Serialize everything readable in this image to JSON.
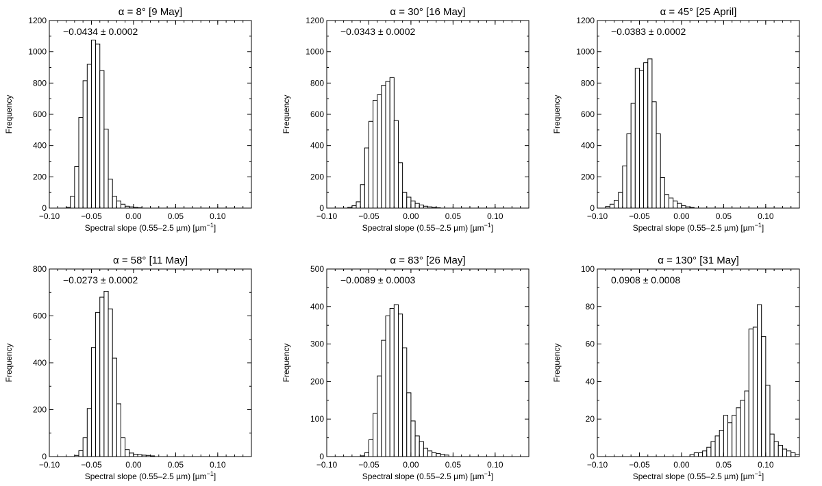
{
  "chart_data": [
    {
      "type": "bar",
      "title": "α = 8° [9 May]",
      "annotation": "−0.0434 ± 0.0002",
      "xlabel": "Spectral slope (0.55–2.5 µm) [µm",
      "xlabel_sup": "−1",
      "xlabel_end": "]",
      "ylabel": "Frequency",
      "xlim": [
        -0.1,
        0.14
      ],
      "ylim": [
        0,
        1200
      ],
      "xticks": [
        -0.1,
        -0.05,
        0.0,
        0.05,
        0.1
      ],
      "xtick_labels": [
        "−0.10",
        "−0.05",
        "0.00",
        "0.05",
        "0.10"
      ],
      "yticks": [
        0,
        200,
        400,
        600,
        800,
        1000,
        1200
      ],
      "ytick_labels": [
        "0",
        "200",
        "400",
        "600",
        "800",
        "1000",
        "1200"
      ],
      "bin_width": 0.005,
      "bin_start": -0.085,
      "values": [
        0,
        5,
        75,
        265,
        580,
        815,
        920,
        1075,
        1050,
        880,
        505,
        185,
        75,
        45,
        25,
        12,
        8,
        5,
        2,
        0
      ]
    },
    {
      "type": "bar",
      "title": "α = 30° [16 May]",
      "annotation": "−0.0343 ± 0.0002",
      "xlabel": "Spectral slope (0.55–2.5 µm) [µm",
      "xlabel_sup": "−1",
      "xlabel_end": "]",
      "ylabel": "Frequency",
      "xlim": [
        -0.1,
        0.14
      ],
      "ylim": [
        0,
        1200
      ],
      "xticks": [
        -0.1,
        -0.05,
        0.0,
        0.05,
        0.1
      ],
      "xtick_labels": [
        "−0.10",
        "−0.05",
        "0.00",
        "0.05",
        "0.10"
      ],
      "yticks": [
        0,
        200,
        400,
        600,
        800,
        1000,
        1200
      ],
      "ytick_labels": [
        "0",
        "200",
        "400",
        "600",
        "800",
        "1000",
        "1200"
      ],
      "bin_width": 0.005,
      "bin_start": -0.08,
      "values": [
        0,
        5,
        15,
        40,
        150,
        385,
        555,
        690,
        725,
        785,
        810,
        835,
        560,
        290,
        100,
        70,
        45,
        30,
        20,
        12,
        8,
        5,
        2,
        0
      ]
    },
    {
      "type": "bar",
      "title": "α = 45° [25 April]",
      "annotation": "−0.0383 ± 0.0002",
      "xlabel": "Spectral slope (0.55–2.5 µm) [µm",
      "xlabel_sup": "−1",
      "xlabel_end": "]",
      "ylabel": "Frequency",
      "xlim": [
        -0.1,
        0.14
      ],
      "ylim": [
        0,
        1200
      ],
      "xticks": [
        -0.1,
        -0.05,
        0.0,
        0.05,
        0.1
      ],
      "xtick_labels": [
        "−0.10",
        "−0.05",
        "0.00",
        "0.05",
        "0.10"
      ],
      "yticks": [
        0,
        200,
        400,
        600,
        800,
        1000,
        1200
      ],
      "ytick_labels": [
        "0",
        "200",
        "400",
        "600",
        "800",
        "1000",
        "1200"
      ],
      "bin_width": 0.005,
      "bin_start": -0.095,
      "values": [
        0,
        10,
        25,
        50,
        100,
        270,
        475,
        670,
        895,
        880,
        930,
        955,
        680,
        475,
        195,
        85,
        65,
        45,
        30,
        15,
        8,
        4,
        0
      ]
    },
    {
      "type": "bar",
      "title": "α = 58° [11 May]",
      "annotation": "−0.0273 ± 0.0002",
      "xlabel": "Spectral slope (0.55–2.5 µm) [µm",
      "xlabel_sup": "−1",
      "xlabel_end": "]",
      "ylabel": "Frequency",
      "xlim": [
        -0.1,
        0.14
      ],
      "ylim": [
        0,
        800
      ],
      "xticks": [
        -0.1,
        -0.05,
        0.0,
        0.05,
        0.1
      ],
      "xtick_labels": [
        "−0.10",
        "−0.05",
        "0.00",
        "0.05",
        "0.10"
      ],
      "yticks": [
        0,
        200,
        400,
        600,
        800
      ],
      "ytick_labels": [
        "0",
        "200",
        "400",
        "600",
        "800"
      ],
      "bin_width": 0.005,
      "bin_start": -0.07,
      "values": [
        5,
        25,
        80,
        205,
        465,
        615,
        680,
        705,
        630,
        420,
        225,
        80,
        30,
        15,
        10,
        8,
        6,
        5,
        3,
        0
      ]
    },
    {
      "type": "bar",
      "title": "α = 83° [26 May]",
      "annotation": "−0.0089 ± 0.0003",
      "xlabel": "Spectral slope (0.55–2.5 µm) [µm",
      "xlabel_sup": "−1",
      "xlabel_end": "]",
      "ylabel": "Frequency",
      "xlim": [
        -0.1,
        0.14
      ],
      "ylim": [
        0,
        500
      ],
      "xticks": [
        -0.1,
        -0.05,
        0.0,
        0.05,
        0.1
      ],
      "xtick_labels": [
        "−0.10",
        "−0.05",
        "0.00",
        "0.05",
        "0.10"
      ],
      "yticks": [
        0,
        100,
        200,
        300,
        400,
        500
      ],
      "ytick_labels": [
        "0",
        "100",
        "200",
        "300",
        "400",
        "500"
      ],
      "bin_width": 0.005,
      "bin_start": -0.06,
      "values": [
        2,
        10,
        45,
        115,
        215,
        310,
        375,
        395,
        405,
        380,
        290,
        170,
        95,
        55,
        40,
        22,
        15,
        10,
        8,
        6,
        4,
        0
      ]
    },
    {
      "type": "bar",
      "title": "α = 130° [31 May]",
      "annotation": "0.0908  ± 0.0008",
      "xlabel": "Spectral slope (0.55–2.5 µm) [µm",
      "xlabel_sup": "−1",
      "xlabel_end": "]",
      "ylabel": "Frequency",
      "xlim": [
        -0.1,
        0.14
      ],
      "ylim": [
        0,
        100
      ],
      "xticks": [
        -0.1,
        -0.05,
        0.0,
        0.05,
        0.1
      ],
      "xtick_labels": [
        "−0.10",
        "−0.05",
        "0.00",
        "0.05",
        "0.10"
      ],
      "yticks": [
        0,
        20,
        40,
        60,
        80,
        100
      ],
      "ytick_labels": [
        "0",
        "20",
        "40",
        "60",
        "80",
        "100"
      ],
      "bin_width": 0.005,
      "bin_start": 0.01,
      "values": [
        1,
        2,
        2,
        3,
        5,
        8,
        11,
        14,
        22,
        18,
        22,
        26,
        30,
        35,
        68,
        69,
        81,
        64,
        38,
        12,
        8,
        6,
        4,
        3,
        2,
        1
      ]
    }
  ]
}
